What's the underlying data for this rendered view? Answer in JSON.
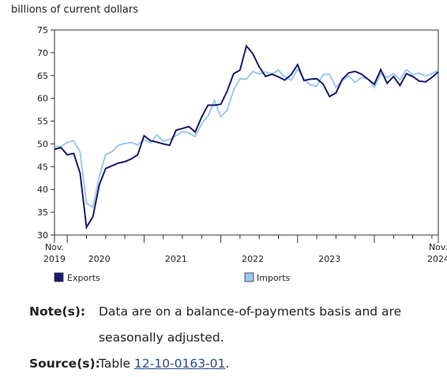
{
  "unit_label": "billions of current dollars",
  "colors": {
    "exports": "#1a1a6e",
    "imports": "#9ec8ee"
  },
  "chart_data": {
    "type": "line",
    "ylim": [
      30,
      75
    ],
    "y_ticks": [
      "30",
      "35",
      "40",
      "45",
      "50",
      "55",
      "60",
      "65",
      "70",
      "75"
    ],
    "x_start": "2019-11",
    "x_end": "2024-11",
    "x_tick_labels": [
      {
        "month": "2019-11",
        "line1": "Nov.",
        "line2": "2019"
      },
      {
        "month": "2020-06",
        "line1": "",
        "line2": "2020"
      },
      {
        "month": "2021-06",
        "line1": "",
        "line2": "2021"
      },
      {
        "month": "2022-06",
        "line1": "",
        "line2": "2022"
      },
      {
        "month": "2023-06",
        "line1": "",
        "line2": "2023"
      },
      {
        "month": "2024-11",
        "line1": "Nov.",
        "line2": "2024"
      }
    ],
    "grid": false,
    "legend_placement": "bottom-left",
    "series": [
      {
        "name": "Exports",
        "values": [
          48.8,
          49.2,
          47.6,
          47.9,
          43.6,
          31.7,
          34.0,
          41.0,
          44.6,
          45.2,
          45.8,
          46.1,
          46.7,
          47.6,
          51.8,
          50.7,
          50.4,
          50.0,
          49.7,
          53.0,
          53.4,
          53.8,
          52.6,
          55.9,
          58.5,
          58.5,
          58.7,
          61.6,
          65.4,
          66.2,
          71.5,
          69.8,
          66.9,
          64.8,
          65.3,
          64.7,
          64.0,
          65.2,
          67.4,
          63.9,
          64.2,
          64.3,
          63.1,
          60.4,
          61.2,
          64.2,
          65.6,
          65.9,
          65.3,
          64.2,
          63.1,
          66.3,
          63.3,
          64.8,
          62.8,
          65.4,
          64.8,
          63.8,
          63.6,
          64.6,
          65.8
        ]
      },
      {
        "name": "Imports",
        "values": [
          49.4,
          49.4,
          50.3,
          50.7,
          48.2,
          37.0,
          36.1,
          42.9,
          47.7,
          48.3,
          49.7,
          50.1,
          50.3,
          49.8,
          50.9,
          50.2,
          52.0,
          50.6,
          51.0,
          51.8,
          52.7,
          52.4,
          51.6,
          54.4,
          56.1,
          59.5,
          56.0,
          57.4,
          61.8,
          64.3,
          64.2,
          65.9,
          65.3,
          65.8,
          65.3,
          66.2,
          64.7,
          64.0,
          66.4,
          64.2,
          62.9,
          62.7,
          65.2,
          65.3,
          62.4,
          63.9,
          64.9,
          63.5,
          64.6,
          64.2,
          62.4,
          65.4,
          64.6,
          65.4,
          64.1,
          66.3,
          65.2,
          65.5,
          64.9,
          65.4,
          66.2
        ]
      }
    ]
  },
  "notes": {
    "note_label": "Note(s):",
    "note_line1": "Data are on a balance-of-payments basis and are",
    "note_line2": "seasonally adjusted.",
    "source_label": "Source(s):",
    "source_prefix": "Table ",
    "source_link": "12-10-0163-01",
    "source_suffix": "."
  }
}
